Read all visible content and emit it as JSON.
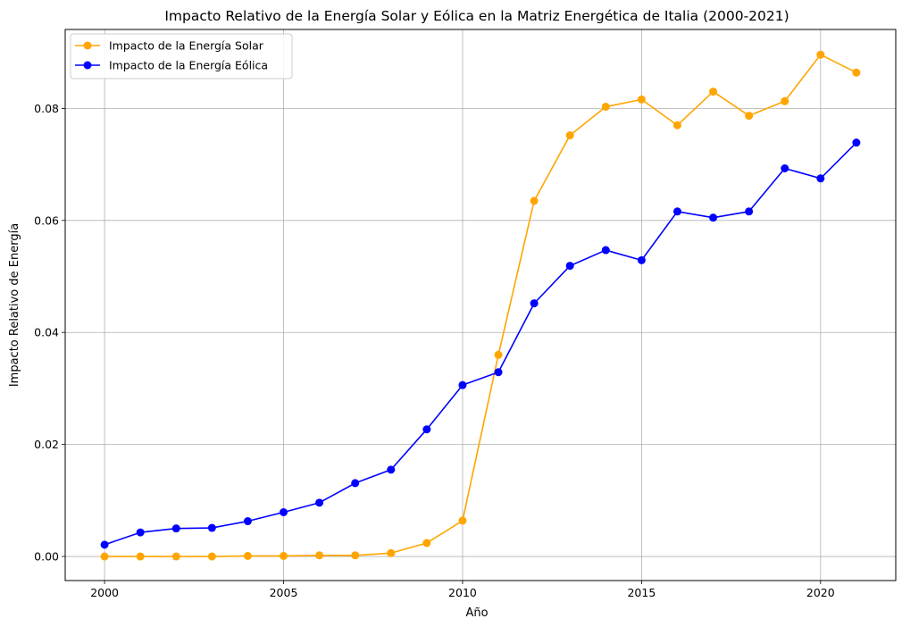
{
  "chart_data": {
    "type": "line",
    "title": "Impacto Relativo de la Energía Solar y Eólica en la Matriz Energética de Italia (2000-2021)",
    "xlabel": "Año",
    "ylabel": "Impacto Relativo de Energía",
    "x": [
      2000,
      2001,
      2002,
      2003,
      2004,
      2005,
      2006,
      2007,
      2008,
      2009,
      2010,
      2011,
      2012,
      2013,
      2014,
      2015,
      2016,
      2017,
      2018,
      2019,
      2020,
      2021
    ],
    "series": [
      {
        "name": "Impacto de la Energía Solar",
        "color": "#FFA500",
        "marker": "circle",
        "values": [
          0.0,
          0.0,
          0.0,
          0.0,
          0.0001,
          0.0001,
          0.0002,
          0.0002,
          0.0006,
          0.0024,
          0.0064,
          0.036,
          0.0635,
          0.0752,
          0.0803,
          0.0816,
          0.077,
          0.083,
          0.0787,
          0.0813,
          0.0896,
          0.0864
        ]
      },
      {
        "name": "Impacto de la Energía Eólica",
        "color": "#0000FF",
        "marker": "circle",
        "values": [
          0.0021,
          0.0043,
          0.005,
          0.0051,
          0.0063,
          0.0079,
          0.0096,
          0.0131,
          0.0155,
          0.0227,
          0.0306,
          0.0329,
          0.0452,
          0.0519,
          0.0547,
          0.0529,
          0.0616,
          0.0605,
          0.0616,
          0.0693,
          0.0675,
          0.0739
        ]
      }
    ],
    "xlim": [
      1998.9,
      2022.1
    ],
    "ylim": [
      -0.0043,
      0.0941
    ],
    "xticks": [
      2000,
      2005,
      2010,
      2015,
      2020
    ],
    "xtick_labels": [
      "2000",
      "2005",
      "2010",
      "2015",
      "2020"
    ],
    "yticks": [
      0.0,
      0.02,
      0.04,
      0.06,
      0.08
    ],
    "ytick_labels": [
      "0.00",
      "0.02",
      "0.04",
      "0.06",
      "0.08"
    ],
    "grid": true,
    "legend_position": "top-left"
  }
}
